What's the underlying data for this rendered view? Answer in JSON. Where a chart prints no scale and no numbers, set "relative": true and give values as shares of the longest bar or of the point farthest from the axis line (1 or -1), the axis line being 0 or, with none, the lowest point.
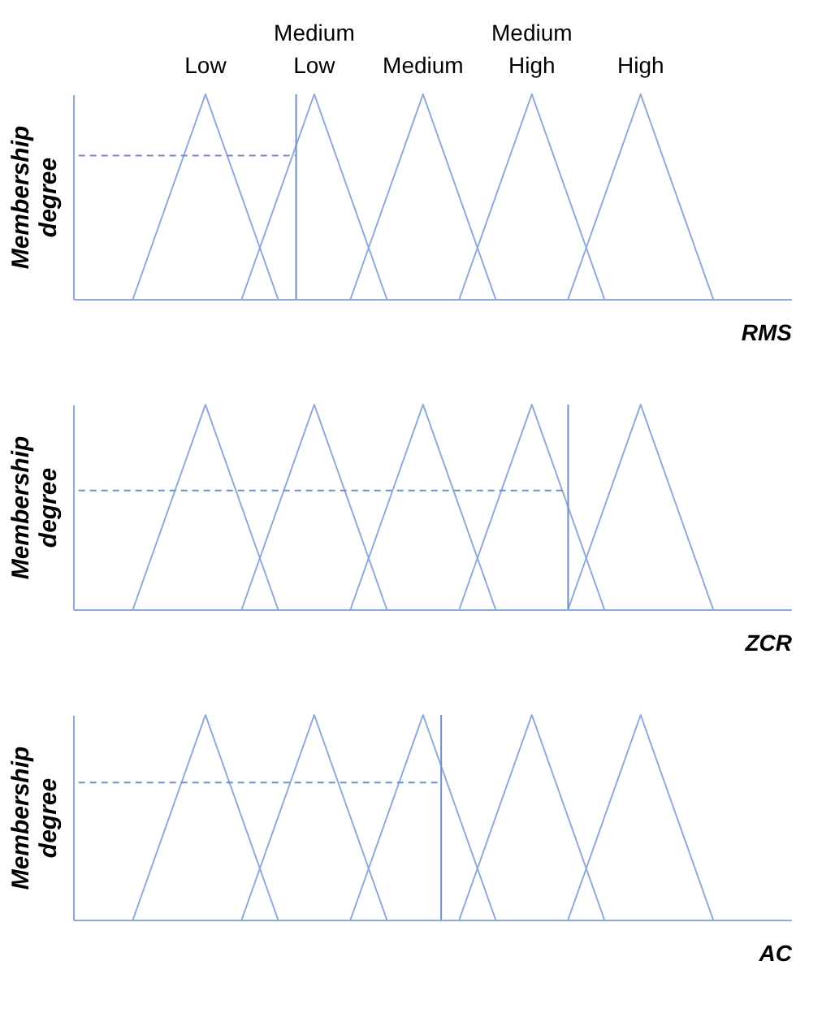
{
  "chart_data": [
    {
      "type": "line",
      "relative": true,
      "xlabel": "RMS",
      "ylabel": "Membership degree",
      "tick_labels": false,
      "grid": false,
      "categories": [
        null,
        null,
        null,
        null,
        null,
        null,
        null,
        null,
        null,
        null,
        null,
        null,
        null,
        null,
        null,
        null,
        null,
        null,
        null,
        null,
        null,
        null,
        null,
        null,
        null,
        null,
        null,
        null,
        null,
        null,
        null,
        null,
        null,
        null,
        null,
        null,
        null,
        null,
        null,
        null
      ],
      "series": [
        {
          "name": "Low",
          "color": "#8eaad8",
          "values": [
            null,
            null,
            null,
            0,
            0.25,
            0.5,
            0.75,
            1,
            0.75,
            0.5,
            0.25,
            0,
            null,
            null,
            null,
            null,
            null,
            null,
            null,
            null,
            null,
            null,
            null,
            null,
            null,
            null,
            null,
            null,
            null,
            null,
            null,
            null,
            null,
            null,
            null,
            null,
            null,
            null,
            null,
            null
          ]
        },
        {
          "name": "Medium Low",
          "color": "#8eaad8",
          "values": [
            null,
            null,
            null,
            null,
            null,
            null,
            null,
            null,
            null,
            0,
            0.25,
            0.5,
            0.75,
            1,
            0.75,
            0.5,
            0.25,
            0,
            null,
            null,
            null,
            null,
            null,
            null,
            null,
            null,
            null,
            null,
            null,
            null,
            null,
            null,
            null,
            null,
            null,
            null,
            null,
            null,
            null,
            null
          ]
        },
        {
          "name": "Medium",
          "color": "#8eaad8",
          "values": [
            null,
            null,
            null,
            null,
            null,
            null,
            null,
            null,
            null,
            null,
            null,
            null,
            null,
            null,
            null,
            0,
            0.25,
            0.5,
            0.75,
            1,
            0.75,
            0.5,
            0.25,
            0,
            null,
            null,
            null,
            null,
            null,
            null,
            null,
            null,
            null,
            null,
            null,
            null,
            null,
            null,
            null,
            null
          ]
        },
        {
          "name": "Medium High",
          "color": "#8eaad8",
          "values": [
            null,
            null,
            null,
            null,
            null,
            null,
            null,
            null,
            null,
            null,
            null,
            null,
            null,
            null,
            null,
            null,
            null,
            null,
            null,
            null,
            null,
            0,
            0.25,
            0.5,
            0.75,
            1,
            0.75,
            0.5,
            0.25,
            0,
            null,
            null,
            null,
            null,
            null,
            null,
            null,
            null,
            null,
            null
          ]
        },
        {
          "name": "High",
          "color": "#8eaad8",
          "values": [
            null,
            null,
            null,
            null,
            null,
            null,
            null,
            null,
            null,
            null,
            null,
            null,
            null,
            null,
            null,
            null,
            null,
            null,
            null,
            null,
            null,
            null,
            null,
            null,
            null,
            null,
            null,
            0,
            0.25,
            0.5,
            0.75,
            1,
            0.75,
            0.5,
            0.25,
            0,
            null,
            null,
            null,
            null
          ]
        },
        {
          "color": "#6f8fc8",
          "line_style": "dashed",
          "values": [
            0.7,
            0.7,
            0.7,
            0.7,
            0.7,
            0.7,
            0.7,
            0.7,
            0.7,
            0.7,
            0.7,
            0.7,
            0.7,
            null,
            null,
            null,
            null,
            null,
            null,
            null,
            null,
            null,
            null,
            null,
            null,
            null,
            null,
            null,
            null,
            null,
            null,
            null,
            null,
            null,
            null,
            null,
            null,
            null,
            null,
            null
          ]
        }
      ]
    },
    {
      "type": "line",
      "relative": true,
      "xlabel": "ZCR",
      "ylabel": "Membership degree",
      "tick_labels": false,
      "grid": false,
      "categories": [
        null,
        null,
        null,
        null,
        null,
        null,
        null,
        null,
        null,
        null,
        null,
        null,
        null,
        null,
        null,
        null,
        null,
        null,
        null,
        null,
        null,
        null,
        null,
        null,
        null,
        null,
        null,
        null,
        null,
        null,
        null,
        null,
        null,
        null,
        null,
        null,
        null,
        null,
        null,
        null
      ],
      "series": [
        {
          "color": "#8eaad8",
          "values": [
            null,
            null,
            null,
            0,
            0.25,
            0.5,
            0.75,
            1,
            0.75,
            0.5,
            0.25,
            0,
            null,
            null,
            null,
            null,
            null,
            null,
            null,
            null,
            null,
            null,
            null,
            null,
            null,
            null,
            null,
            null,
            null,
            null,
            null,
            null,
            null,
            null,
            null,
            null,
            null,
            null,
            null,
            null
          ]
        },
        {
          "color": "#8eaad8",
          "values": [
            null,
            null,
            null,
            null,
            null,
            null,
            null,
            null,
            null,
            0,
            0.25,
            0.5,
            0.75,
            1,
            0.75,
            0.5,
            0.25,
            0,
            null,
            null,
            null,
            null,
            null,
            null,
            null,
            null,
            null,
            null,
            null,
            null,
            null,
            null,
            null,
            null,
            null,
            null,
            null,
            null,
            null,
            null
          ]
        },
        {
          "color": "#8eaad8",
          "values": [
            null,
            null,
            null,
            null,
            null,
            null,
            null,
            null,
            null,
            null,
            null,
            null,
            null,
            null,
            null,
            0,
            0.25,
            0.5,
            0.75,
            1,
            0.75,
            0.5,
            0.25,
            0,
            null,
            null,
            null,
            null,
            null,
            null,
            null,
            null,
            null,
            null,
            null,
            null,
            null,
            null,
            null,
            null
          ]
        },
        {
          "color": "#8eaad8",
          "values": [
            null,
            null,
            null,
            null,
            null,
            null,
            null,
            null,
            null,
            null,
            null,
            null,
            null,
            null,
            null,
            null,
            null,
            null,
            null,
            null,
            null,
            0,
            0.25,
            0.5,
            0.75,
            1,
            0.75,
            0.5,
            0.25,
            0,
            null,
            null,
            null,
            null,
            null,
            null,
            null,
            null,
            null,
            null
          ]
        },
        {
          "color": "#8eaad8",
          "values": [
            null,
            null,
            null,
            null,
            null,
            null,
            null,
            null,
            null,
            null,
            null,
            null,
            null,
            null,
            null,
            null,
            null,
            null,
            null,
            null,
            null,
            null,
            null,
            null,
            null,
            null,
            null,
            0,
            0.25,
            0.5,
            0.75,
            1,
            0.75,
            0.5,
            0.25,
            0,
            null,
            null,
            null,
            null
          ]
        },
        {
          "color": "#6f8fc8",
          "line_style": "dashed",
          "values": [
            0.58,
            0.58,
            0.58,
            0.58,
            0.58,
            0.58,
            0.58,
            0.58,
            0.58,
            0.58,
            0.58,
            0.58,
            0.58,
            0.58,
            0.58,
            0.58,
            0.58,
            0.58,
            0.58,
            0.58,
            0.58,
            0.58,
            0.58,
            0.58,
            0.58,
            0.58,
            0.58,
            0.58,
            null,
            null,
            null,
            null,
            null,
            null,
            null,
            null,
            null,
            null,
            null,
            null
          ]
        }
      ]
    },
    {
      "type": "line",
      "relative": true,
      "xlabel": "AC",
      "ylabel": "Membership degree",
      "tick_labels": false,
      "grid": false,
      "categories": [
        null,
        null,
        null,
        null,
        null,
        null,
        null,
        null,
        null,
        null,
        null,
        null,
        null,
        null,
        null,
        null,
        null,
        null,
        null,
        null,
        null,
        null,
        null,
        null,
        null,
        null,
        null,
        null,
        null,
        null,
        null,
        null,
        null,
        null,
        null,
        null,
        null,
        null,
        null,
        null
      ],
      "series": [
        {
          "color": "#8eaad8",
          "values": [
            null,
            null,
            null,
            0,
            0.25,
            0.5,
            0.75,
            1,
            0.75,
            0.5,
            0.25,
            0,
            null,
            null,
            null,
            null,
            null,
            null,
            null,
            null,
            null,
            null,
            null,
            null,
            null,
            null,
            null,
            null,
            null,
            null,
            null,
            null,
            null,
            null,
            null,
            null,
            null,
            null,
            null,
            null
          ]
        },
        {
          "color": "#8eaad8",
          "values": [
            null,
            null,
            null,
            null,
            null,
            null,
            null,
            null,
            null,
            0,
            0.25,
            0.5,
            0.75,
            1,
            0.75,
            0.5,
            0.25,
            0,
            null,
            null,
            null,
            null,
            null,
            null,
            null,
            null,
            null,
            null,
            null,
            null,
            null,
            null,
            null,
            null,
            null,
            null,
            null,
            null,
            null,
            null
          ]
        },
        {
          "color": "#8eaad8",
          "values": [
            null,
            null,
            null,
            null,
            null,
            null,
            null,
            null,
            null,
            null,
            null,
            null,
            null,
            null,
            null,
            0,
            0.25,
            0.5,
            0.75,
            1,
            0.75,
            0.5,
            0.25,
            0,
            null,
            null,
            null,
            null,
            null,
            null,
            null,
            null,
            null,
            null,
            null,
            null,
            null,
            null,
            null,
            null
          ]
        },
        {
          "color": "#8eaad8",
          "values": [
            null,
            null,
            null,
            null,
            null,
            null,
            null,
            null,
            null,
            null,
            null,
            null,
            null,
            null,
            null,
            null,
            null,
            null,
            null,
            null,
            null,
            0,
            0.25,
            0.5,
            0.75,
            1,
            0.75,
            0.5,
            0.25,
            0,
            null,
            null,
            null,
            null,
            null,
            null,
            null,
            null,
            null,
            null
          ]
        },
        {
          "color": "#8eaad8",
          "values": [
            null,
            null,
            null,
            null,
            null,
            null,
            null,
            null,
            null,
            null,
            null,
            null,
            null,
            null,
            null,
            null,
            null,
            null,
            null,
            null,
            null,
            null,
            null,
            null,
            null,
            null,
            null,
            0,
            0.25,
            0.5,
            0.75,
            1,
            0.75,
            0.5,
            0.25,
            0,
            null,
            null,
            null,
            null
          ]
        },
        {
          "color": "#6f8fc8",
          "line_style": "dashed",
          "values": [
            0.67,
            0.67,
            0.67,
            0.67,
            0.67,
            0.67,
            0.67,
            0.67,
            0.67,
            0.67,
            0.67,
            0.67,
            0.67,
            0.67,
            0.67,
            0.67,
            0.67,
            0.67,
            0.67,
            0.67,
            0.67,
            null,
            null,
            null,
            null,
            null,
            null,
            null,
            null,
            null,
            null,
            null,
            null,
            null,
            null,
            null,
            null,
            null,
            null,
            null
          ]
        }
      ]
    }
  ]
}
